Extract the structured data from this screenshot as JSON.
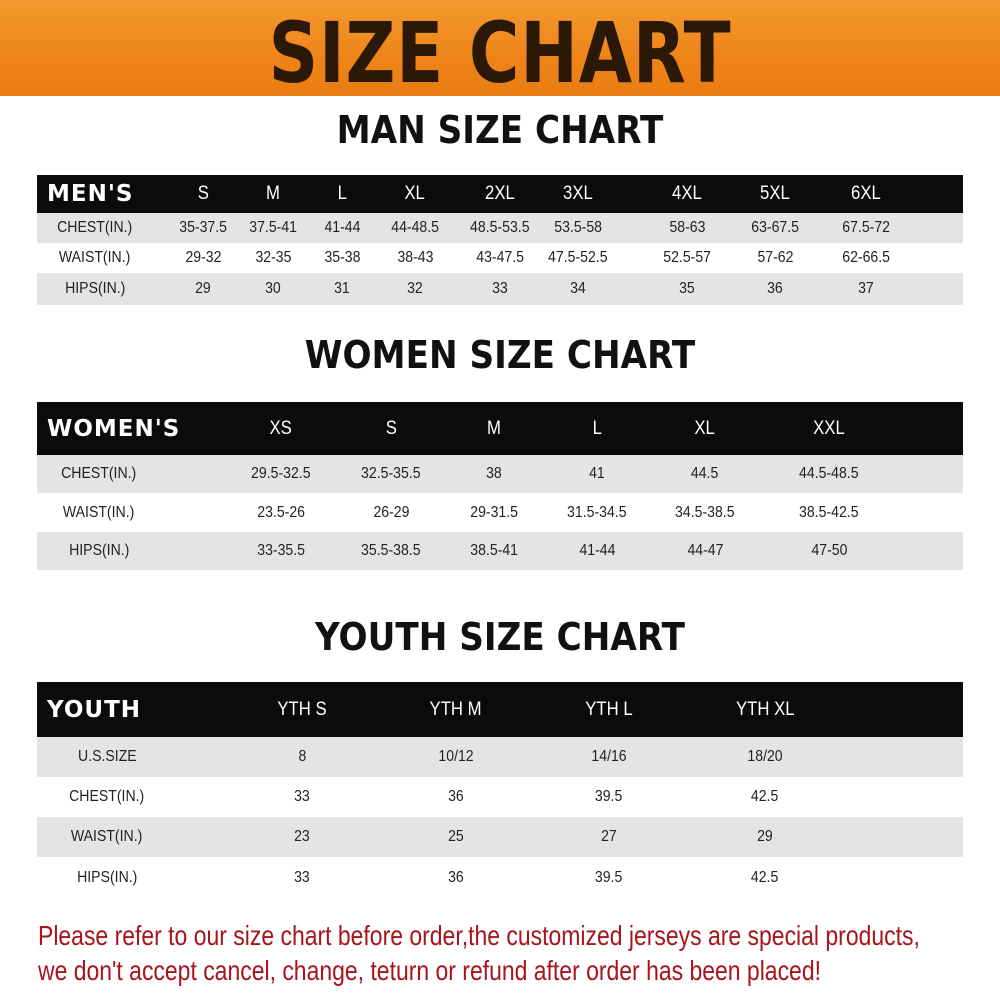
{
  "banner": {
    "title": "SIZE CHART",
    "color": "#ee8418"
  },
  "men": {
    "title": "MAN SIZE CHART",
    "header": [
      "MEN'S",
      "S",
      "M",
      "L",
      "XL",
      "2XL",
      "3XL",
      "4XL",
      "5XL",
      "6XL"
    ],
    "rows": [
      [
        "CHEST(IN.)",
        "35-37.5",
        "37.5-41",
        "41-44",
        "44-48.5",
        "48.5-53.5",
        "53.5-58",
        "58-63",
        "63-67.5",
        "67.5-72"
      ],
      [
        "WAIST(IN.)",
        "29-32",
        "32-35",
        "35-38",
        "38-43",
        "43-47.5",
        "47.5-52.5",
        "52.5-57",
        "57-62",
        "62-66.5"
      ],
      [
        "HIPS(IN.)",
        "29",
        "30",
        "31",
        "32",
        "33",
        "34",
        "35",
        "36",
        "37"
      ]
    ]
  },
  "women": {
    "title": "WOMEN SIZE CHART",
    "header": [
      "WOMEN'S",
      "XS",
      "S",
      "M",
      "L",
      "XL",
      "XXL"
    ],
    "rows": [
      [
        "CHEST(IN.)",
        "29.5-32.5",
        "32.5-35.5",
        "38",
        "41",
        "44.5",
        "44.5-48.5"
      ],
      [
        "WAIST(IN.)",
        "23.5-26",
        "26-29",
        "29-31.5",
        "31.5-34.5",
        "34.5-38.5",
        "38.5-42.5"
      ],
      [
        "HIPS(IN.)",
        "33-35.5",
        "35.5-38.5",
        "38.5-41",
        "41-44",
        "44-47",
        "47-50"
      ]
    ]
  },
  "youth": {
    "title": "YOUTH SIZE CHART",
    "header": [
      "YOUTH",
      "YTH S",
      "YTH M",
      "YTH L",
      "YTH XL"
    ],
    "rows": [
      [
        "U.S.SIZE",
        "8",
        "10/12",
        "14/16",
        "18/20"
      ],
      [
        "CHEST(IN.)",
        "33",
        "36",
        "39.5",
        "42.5"
      ],
      [
        "WAIST(IN.)",
        "23",
        "25",
        "27",
        "29"
      ],
      [
        "HIPS(IN.)",
        "33",
        "36",
        "39.5",
        "42.5"
      ]
    ]
  },
  "note": {
    "line1": "Please refer to our size chart before order,the customized jerseys are special products,",
    "line2": "we don't accept cancel, change, teturn or refund after order has been placed!",
    "color": "#a8141c"
  }
}
